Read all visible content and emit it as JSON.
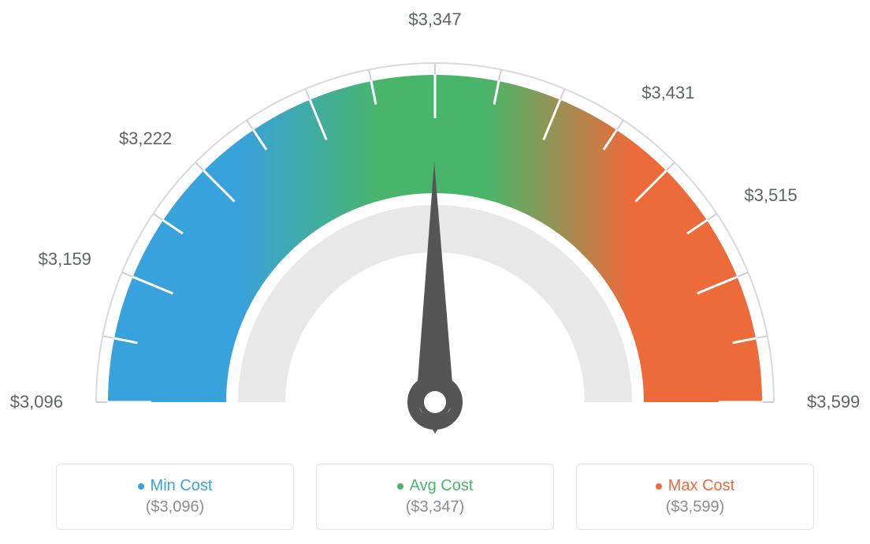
{
  "gauge": {
    "type": "gauge",
    "min_value": 3096,
    "max_value": 3599,
    "avg_value": 3347,
    "needle_value": 3347,
    "background_color": "#ffffff",
    "outer_arc_stroke": "#d9d9d9",
    "inner_arc_fill": "#e8e8e8",
    "tick_stroke": "#ffffff",
    "tick_stroke_outer": "#d0d0d0",
    "needle_color": "#555555",
    "colors": {
      "min": "#38a2dc",
      "mid": "#49b56a",
      "max": "#ed6a3b"
    },
    "tick_labels": [
      {
        "value": "$3,096",
        "angle": 180
      },
      {
        "value": "$3,159",
        "angle": 157.5
      },
      {
        "value": "$3,222",
        "angle": 135
      },
      {
        "value": "$3,347",
        "angle": 90
      },
      {
        "value": "$3,431",
        "angle": 56.25
      },
      {
        "value": "$3,515",
        "angle": 33.75
      },
      {
        "value": "$3,599",
        "angle": 0
      }
    ],
    "label_fontsize": 22,
    "label_color": "#5f6366"
  },
  "cards": {
    "min": {
      "title": "Min Cost",
      "title_color": "#38a2dc",
      "dot_color": "#38a2dc",
      "value": "($3,096)"
    },
    "avg": {
      "title": "Avg Cost",
      "title_color": "#49b56a",
      "dot_color": "#49b56a",
      "value": "($3,347)"
    },
    "max": {
      "title": "Max Cost",
      "title_color": "#ed6a3b",
      "dot_color": "#ed6a3b",
      "value": "($3,599)"
    },
    "border_color": "#e3e3e3",
    "value_color": "#8a8d90"
  }
}
